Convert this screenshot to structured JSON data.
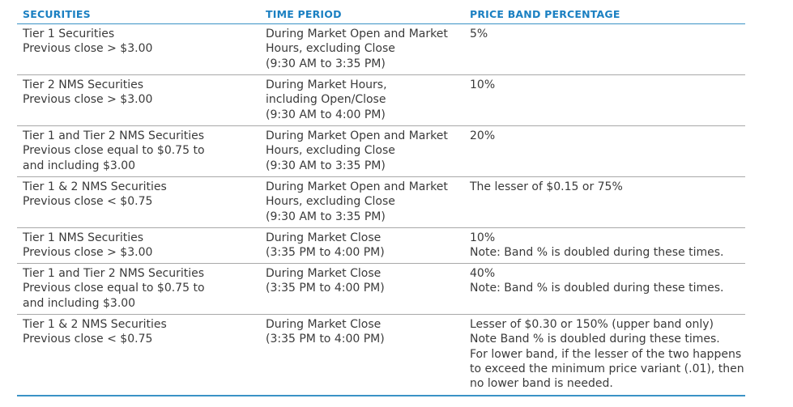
{
  "header": {
    "securities": "SECURITIES",
    "time_period": "TIME PERIOD",
    "price_band": "PRICE BAND PERCENTAGE"
  },
  "rows": [
    {
      "securities": [
        "Tier 1 Securities",
        "Previous close > $3.00"
      ],
      "time": [
        "During Market Open and Market",
        "Hours, excluding Close",
        "(9:30 AM to 3:35 PM)"
      ],
      "band": [
        "5%"
      ]
    },
    {
      "securities": [
        "Tier 2 NMS Securities",
        "Previous close > $3.00"
      ],
      "time": [
        "During Market Hours,",
        "including Open/Close",
        "(9:30 AM to 4:00 PM)"
      ],
      "band": [
        "10%"
      ]
    },
    {
      "securities": [
        "Tier 1 and Tier 2 NMS Securities",
        "Previous close equal to $0.75 to",
        "and including $3.00"
      ],
      "time": [
        "During Market Open and Market",
        "Hours, excluding Close",
        "(9:30 AM to 3:35 PM)"
      ],
      "band": [
        "20%"
      ]
    },
    {
      "securities": [
        "Tier 1 & 2 NMS Securities",
        "Previous close < $0.75"
      ],
      "time": [
        "During Market Open and Market",
        "Hours, excluding Close",
        "(9:30 AM to 3:35 PM)"
      ],
      "band": [
        "The lesser of $0.15 or 75%"
      ]
    },
    {
      "securities": [
        "Tier 1 NMS Securities",
        "Previous close > $3.00"
      ],
      "time": [
        "During Market Close",
        "(3:35 PM to 4:00 PM)"
      ],
      "band": [
        "10%",
        "Note: Band % is doubled during these times."
      ]
    },
    {
      "securities": [
        "Tier 1 and Tier 2 NMS Securities",
        "Previous close equal to $0.75 to",
        "and including $3.00"
      ],
      "time": [
        "During Market Close",
        "(3:35 PM to 4:00 PM)"
      ],
      "band": [
        "40%",
        "Note: Band % is doubled during these times."
      ]
    },
    {
      "securities": [
        "Tier 1 & 2 NMS Securities",
        "Previous close < $0.75"
      ],
      "time": [
        "During Market Close",
        "(3:35 PM to 4:00 PM)"
      ],
      "band": [
        "Lesser of $0.30 or 150% (upper band only)",
        "Note Band % is doubled during these times.",
        "For lower band, if the lesser of the two happens",
        "to exceed the minimum price variant (.01), then",
        "no lower band is needed."
      ]
    }
  ]
}
